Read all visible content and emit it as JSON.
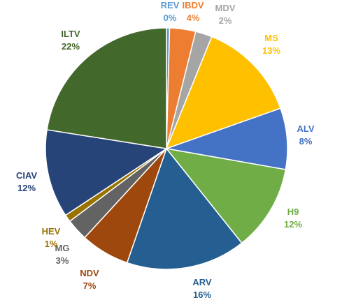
{
  "chart_data": {
    "type": "pie",
    "title": "",
    "start": "top",
    "direction": "clockwise",
    "slices": [
      {
        "name": "REV",
        "value": 0,
        "pct_label": "0%",
        "color": "#5b9bd5",
        "label_color": "#5b9bd5"
      },
      {
        "name": "IBDV",
        "value": 4,
        "pct_label": "4%",
        "color": "#ed7d31",
        "label_color": "#ed7d31"
      },
      {
        "name": "MDV",
        "value": 2,
        "pct_label": "2%",
        "color": "#a5a5a5",
        "label_color": "#a5a5a5"
      },
      {
        "name": "MS",
        "value": 13,
        "pct_label": "13%",
        "color": "#ffc000",
        "label_color": "#ffc000"
      },
      {
        "name": "ALV",
        "value": 8,
        "pct_label": "8%",
        "color": "#4472c4",
        "label_color": "#4472c4"
      },
      {
        "name": "H9",
        "value": 12,
        "pct_label": "12%",
        "color": "#70ad47",
        "label_color": "#70ad47"
      },
      {
        "name": "ARV",
        "value": 16,
        "pct_label": "16%",
        "color": "#255e91",
        "label_color": "#255e91"
      },
      {
        "name": "NDV",
        "value": 7,
        "pct_label": "7%",
        "color": "#9e480e",
        "label_color": "#9e480e"
      },
      {
        "name": "MG",
        "value": 3,
        "pct_label": "3%",
        "color": "#636363",
        "label_color": "#636363"
      },
      {
        "name": "HEV",
        "value": 1,
        "pct_label": "1%",
        "color": "#997300",
        "label_color": "#997300"
      },
      {
        "name": "CIAV",
        "value": 12,
        "pct_label": "12%",
        "color": "#264478",
        "label_color": "#264478"
      },
      {
        "name": "ILTV",
        "value": 22,
        "pct_label": "22%",
        "color": "#43682b",
        "label_color": "#43682b"
      }
    ]
  }
}
